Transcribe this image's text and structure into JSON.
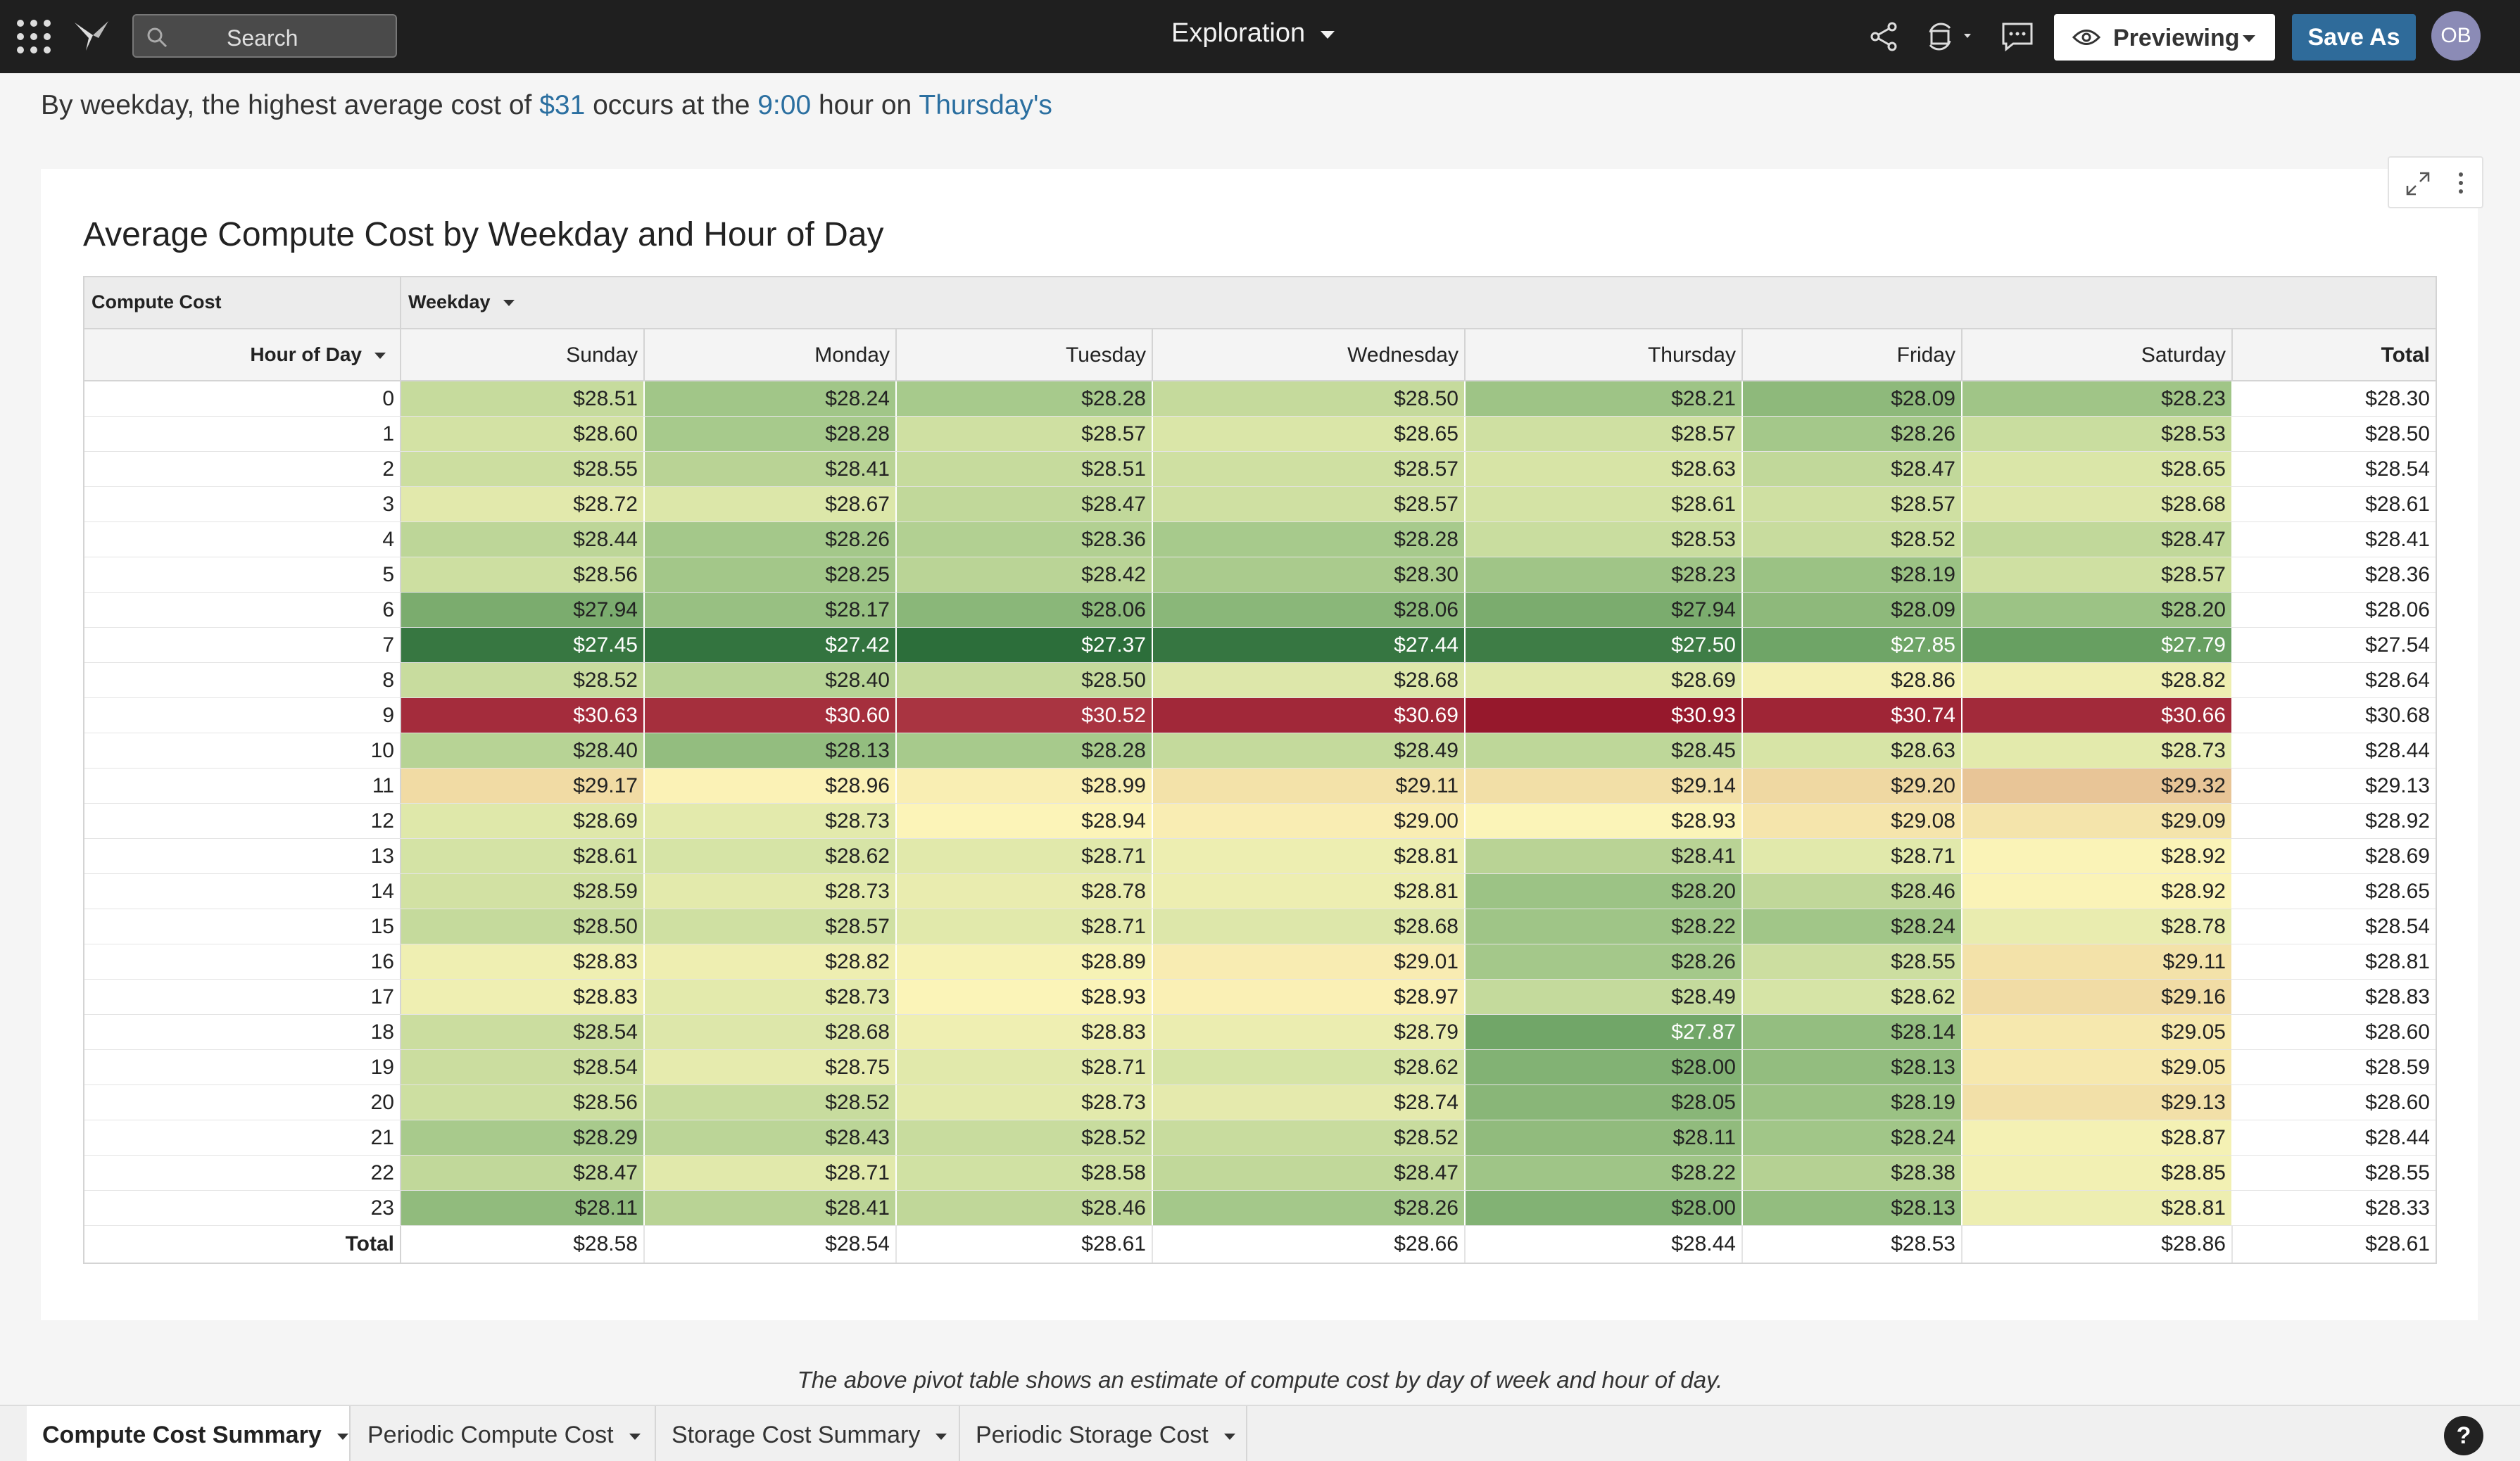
{
  "app": {
    "search_placeholder": "Search",
    "doc_title": "Exploration",
    "preview_label": "Previewing",
    "save_as_label": "Save As",
    "avatar_initials": "OB",
    "help_label": "?"
  },
  "insight": {
    "prefix": "By weekday, the highest average cost of ",
    "cost": "$31",
    "mid": " occurs at the ",
    "hour": "9:00",
    "mid2": " hour on ",
    "day": "Thursday's"
  },
  "chart_data": {
    "type": "heatmap",
    "title": "Average Compute Cost by Weekday and Hour of Day",
    "value_label": "Compute Cost",
    "row_field": "Hour of Day",
    "column_field": "Weekday",
    "columns": [
      "Sunday",
      "Monday",
      "Tuesday",
      "Wednesday",
      "Thursday",
      "Friday",
      "Saturday"
    ],
    "total_label": "Total",
    "rows": [
      {
        "hour": "0",
        "values": [
          "$28.51",
          "$28.24",
          "$28.28",
          "$28.50",
          "$28.21",
          "$28.09",
          "$28.23"
        ],
        "total": "$28.30"
      },
      {
        "hour": "1",
        "values": [
          "$28.60",
          "$28.28",
          "$28.57",
          "$28.65",
          "$28.57",
          "$28.26",
          "$28.53"
        ],
        "total": "$28.50"
      },
      {
        "hour": "2",
        "values": [
          "$28.55",
          "$28.41",
          "$28.51",
          "$28.57",
          "$28.63",
          "$28.47",
          "$28.65"
        ],
        "total": "$28.54"
      },
      {
        "hour": "3",
        "values": [
          "$28.72",
          "$28.67",
          "$28.47",
          "$28.57",
          "$28.61",
          "$28.57",
          "$28.68"
        ],
        "total": "$28.61"
      },
      {
        "hour": "4",
        "values": [
          "$28.44",
          "$28.26",
          "$28.36",
          "$28.28",
          "$28.53",
          "$28.52",
          "$28.47"
        ],
        "total": "$28.41"
      },
      {
        "hour": "5",
        "values": [
          "$28.56",
          "$28.25",
          "$28.42",
          "$28.30",
          "$28.23",
          "$28.19",
          "$28.57"
        ],
        "total": "$28.36"
      },
      {
        "hour": "6",
        "values": [
          "$27.94",
          "$28.17",
          "$28.06",
          "$28.06",
          "$27.94",
          "$28.09",
          "$28.20"
        ],
        "total": "$28.06"
      },
      {
        "hour": "7",
        "values": [
          "$27.45",
          "$27.42",
          "$27.37",
          "$27.44",
          "$27.50",
          "$27.85",
          "$27.79"
        ],
        "total": "$27.54"
      },
      {
        "hour": "8",
        "values": [
          "$28.52",
          "$28.40",
          "$28.50",
          "$28.68",
          "$28.69",
          "$28.86",
          "$28.82"
        ],
        "total": "$28.64"
      },
      {
        "hour": "9",
        "values": [
          "$30.63",
          "$30.60",
          "$30.52",
          "$30.69",
          "$30.93",
          "$30.74",
          "$30.66"
        ],
        "total": "$30.68"
      },
      {
        "hour": "10",
        "values": [
          "$28.40",
          "$28.13",
          "$28.28",
          "$28.49",
          "$28.45",
          "$28.63",
          "$28.73"
        ],
        "total": "$28.44"
      },
      {
        "hour": "11",
        "values": [
          "$29.17",
          "$28.96",
          "$28.99",
          "$29.11",
          "$29.14",
          "$29.20",
          "$29.32"
        ],
        "total": "$29.13"
      },
      {
        "hour": "12",
        "values": [
          "$28.69",
          "$28.73",
          "$28.94",
          "$29.00",
          "$28.93",
          "$29.08",
          "$29.09"
        ],
        "total": "$28.92"
      },
      {
        "hour": "13",
        "values": [
          "$28.61",
          "$28.62",
          "$28.71",
          "$28.81",
          "$28.41",
          "$28.71",
          "$28.92"
        ],
        "total": "$28.69"
      },
      {
        "hour": "14",
        "values": [
          "$28.59",
          "$28.73",
          "$28.78",
          "$28.81",
          "$28.20",
          "$28.46",
          "$28.92"
        ],
        "total": "$28.65"
      },
      {
        "hour": "15",
        "values": [
          "$28.50",
          "$28.57",
          "$28.71",
          "$28.68",
          "$28.22",
          "$28.24",
          "$28.78"
        ],
        "total": "$28.54"
      },
      {
        "hour": "16",
        "values": [
          "$28.83",
          "$28.82",
          "$28.89",
          "$29.01",
          "$28.26",
          "$28.55",
          "$29.11"
        ],
        "total": "$28.81"
      },
      {
        "hour": "17",
        "values": [
          "$28.83",
          "$28.73",
          "$28.93",
          "$28.97",
          "$28.49",
          "$28.62",
          "$29.16"
        ],
        "total": "$28.83"
      },
      {
        "hour": "18",
        "values": [
          "$28.54",
          "$28.68",
          "$28.83",
          "$28.79",
          "$27.87",
          "$28.14",
          "$29.05"
        ],
        "total": "$28.60"
      },
      {
        "hour": "19",
        "values": [
          "$28.54",
          "$28.75",
          "$28.71",
          "$28.62",
          "$28.00",
          "$28.13",
          "$29.05"
        ],
        "total": "$28.59"
      },
      {
        "hour": "20",
        "values": [
          "$28.56",
          "$28.52",
          "$28.73",
          "$28.74",
          "$28.05",
          "$28.19",
          "$29.13"
        ],
        "total": "$28.60"
      },
      {
        "hour": "21",
        "values": [
          "$28.29",
          "$28.43",
          "$28.52",
          "$28.52",
          "$28.11",
          "$28.24",
          "$28.87"
        ],
        "total": "$28.44"
      },
      {
        "hour": "22",
        "values": [
          "$28.47",
          "$28.71",
          "$28.58",
          "$28.47",
          "$28.22",
          "$28.38",
          "$28.85"
        ],
        "total": "$28.55"
      },
      {
        "hour": "23",
        "values": [
          "$28.11",
          "$28.41",
          "$28.46",
          "$28.26",
          "$28.00",
          "$28.13",
          "$28.81"
        ],
        "total": "$28.33"
      }
    ],
    "column_totals": [
      "$28.58",
      "$28.54",
      "$28.61",
      "$28.66",
      "$28.44",
      "$28.53",
      "$28.86"
    ],
    "grand_total": "$28.61"
  },
  "footnote": "The above pivot table shows an estimate of compute cost by day of week and hour of day.",
  "tabs": [
    {
      "label": "Compute Cost Summary",
      "active": true
    },
    {
      "label": "Periodic Compute Cost",
      "active": false
    },
    {
      "label": "Storage Cost Summary",
      "active": false
    },
    {
      "label": "Periodic Storage Cost",
      "active": false
    }
  ]
}
